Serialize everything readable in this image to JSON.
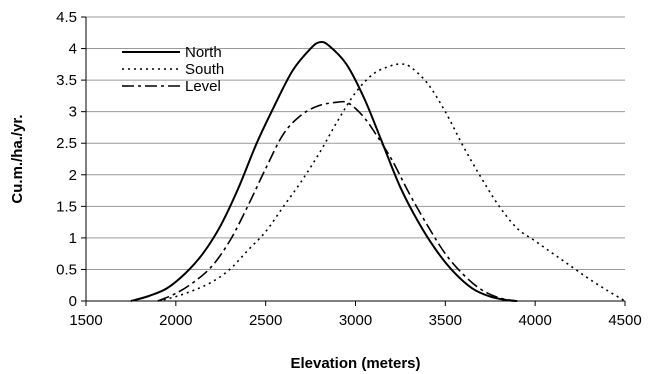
{
  "chart_data": {
    "type": "line",
    "xlabel": "Elevation (meters)",
    "ylabel": "Cu.m./ha./yr.",
    "xlim": [
      1500,
      4500
    ],
    "ylim": [
      0,
      4.5
    ],
    "xticks": [
      "1500",
      "2000",
      "2500",
      "3000",
      "3500",
      "4000",
      "4500"
    ],
    "yticks": [
      "0",
      "0.5",
      "1",
      "1.5",
      "2",
      "2.5",
      "3",
      "3.5",
      "4",
      "4.5"
    ],
    "grid": "horizontal",
    "legend_position": "top-left",
    "series": [
      {
        "name": "North",
        "style": "solid",
        "x": [
          1750,
          1850,
          1950,
          2050,
          2150,
          2250,
          2350,
          2450,
          2550,
          2650,
          2750,
          2800,
          2850,
          2950,
          3050,
          3150,
          3250,
          3350,
          3450,
          3550,
          3650,
          3750,
          3850,
          3900
        ],
        "y": [
          0,
          0.08,
          0.2,
          0.43,
          0.75,
          1.2,
          1.8,
          2.5,
          3.1,
          3.65,
          4.0,
          4.1,
          4.05,
          3.75,
          3.2,
          2.5,
          1.8,
          1.25,
          0.8,
          0.45,
          0.2,
          0.07,
          0.01,
          0
        ]
      },
      {
        "name": "South",
        "style": "dotted",
        "x": [
          1900,
          2000,
          2100,
          2200,
          2300,
          2400,
          2500,
          2600,
          2700,
          2800,
          2900,
          3000,
          3100,
          3200,
          3250,
          3300,
          3400,
          3500,
          3600,
          3700,
          3800,
          3900,
          4000,
          4100,
          4200,
          4300,
          4400,
          4500
        ],
        "y": [
          0,
          0.07,
          0.17,
          0.3,
          0.5,
          0.8,
          1.1,
          1.5,
          1.9,
          2.35,
          2.85,
          3.3,
          3.6,
          3.73,
          3.75,
          3.72,
          3.45,
          3.0,
          2.45,
          1.95,
          1.5,
          1.15,
          0.95,
          0.75,
          0.55,
          0.35,
          0.17,
          0
        ]
      },
      {
        "name": "Level",
        "style": "dash-dot",
        "x": [
          1900,
          2000,
          2100,
          2200,
          2300,
          2400,
          2500,
          2600,
          2700,
          2800,
          2900,
          2950,
          3000,
          3050,
          3100,
          3200,
          3300,
          3400,
          3500,
          3600,
          3700,
          3800,
          3900
        ],
        "y": [
          0,
          0.12,
          0.3,
          0.55,
          0.95,
          1.5,
          2.1,
          2.65,
          2.95,
          3.1,
          3.15,
          3.15,
          3.05,
          2.9,
          2.7,
          2.25,
          1.7,
          1.2,
          0.75,
          0.42,
          0.18,
          0.05,
          0
        ]
      }
    ],
    "colors": {
      "line": "#000000",
      "grid": "#9a9a9a",
      "background": "#ffffff"
    }
  }
}
